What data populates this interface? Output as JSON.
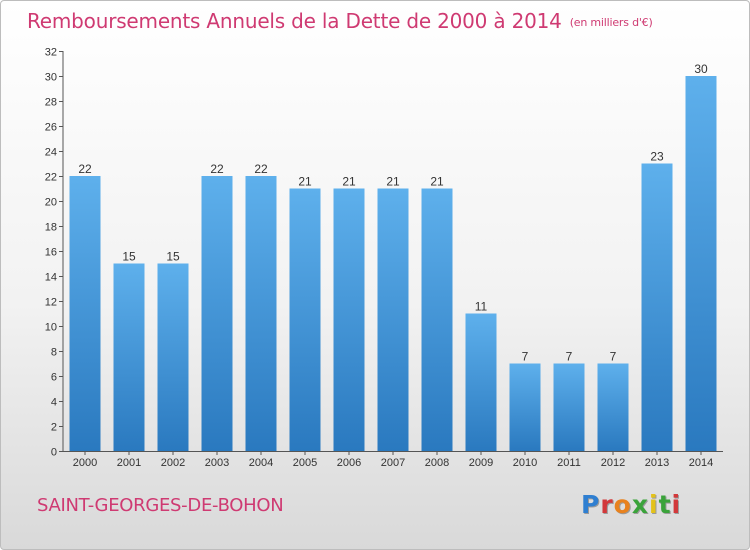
{
  "title": "Remboursements Annuels de la Dette de 2000 à 2014",
  "unit": "(en milliers d'€)",
  "commune": "SAINT-GEORGES-DE-BOHON",
  "logo": "Proxiti",
  "colors": {
    "title": "#cf3a72",
    "bar_top": "#5eb0ec",
    "bar_bottom": "#2a79bf",
    "grid": "#e0e0e0",
    "axis": "#555555"
  },
  "chart_data": {
    "type": "bar",
    "categories": [
      "2000",
      "2001",
      "2002",
      "2003",
      "2004",
      "2005",
      "2006",
      "2007",
      "2008",
      "2009",
      "2010",
      "2011",
      "2012",
      "2013",
      "2014"
    ],
    "values": [
      22,
      15,
      15,
      22,
      22,
      21,
      21,
      21,
      21,
      11,
      7,
      7,
      7,
      23,
      30
    ],
    "title": "Remboursements Annuels de la Dette de 2000 à 2014",
    "xlabel": "",
    "ylabel": "",
    "ylim": [
      0,
      32
    ],
    "yticks": [
      0,
      2,
      4,
      6,
      8,
      10,
      12,
      14,
      16,
      18,
      20,
      22,
      24,
      26,
      28,
      30,
      32
    ],
    "grid": false,
    "legend": "none"
  }
}
